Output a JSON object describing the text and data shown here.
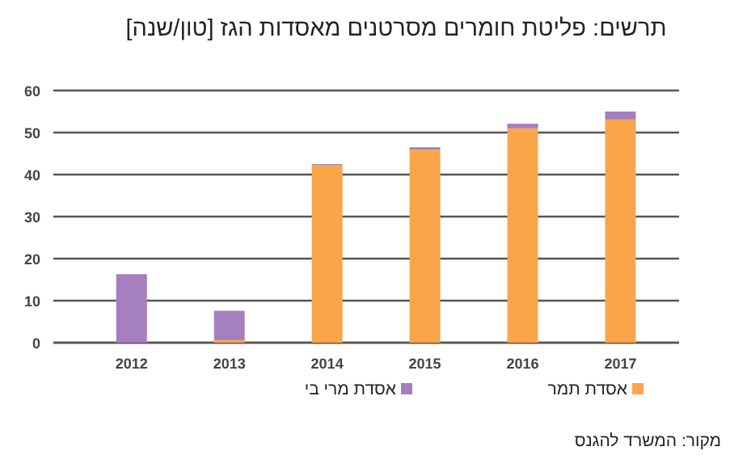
{
  "chart_data": {
    "type": "bar",
    "title": "תרשים: פליטת חומרים מסרטנים מאסדות הגז [טון/שנה]",
    "categories": [
      "2012",
      "2013",
      "2014",
      "2015",
      "2016",
      "2017"
    ],
    "stacked": true,
    "series": [
      {
        "name": "אסדת תמר",
        "color": "#f9a64a",
        "values": [
          null,
          0.6,
          42.2,
          45.9,
          51.0,
          53.1
        ]
      },
      {
        "name": "אסדת מרי בי",
        "color": "#a57fbf",
        "values": [
          16.3,
          7.0,
          0.3,
          0.6,
          1.1,
          1.9
        ]
      }
    ],
    "ylim": [
      0,
      60
    ],
    "yticks": [
      0,
      10,
      20,
      30,
      40,
      50,
      60
    ],
    "grid": "y",
    "legend": "bottom",
    "annotations": [
      "מקור: המשרד להגנס"
    ]
  }
}
